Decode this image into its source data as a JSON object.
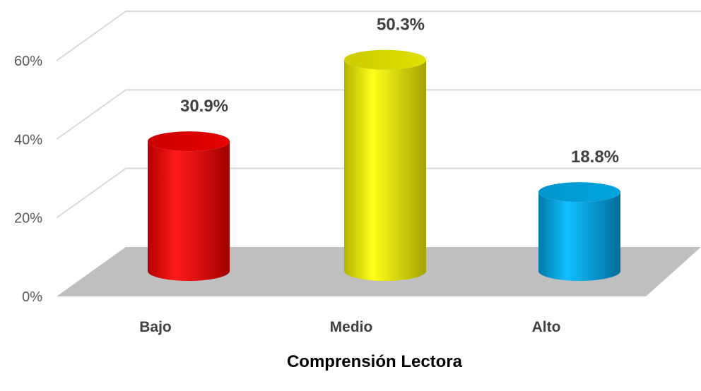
{
  "chart_data": {
    "type": "bar",
    "style": "3d-cylinder",
    "categories": [
      "Bajo",
      "Medio",
      "Alto"
    ],
    "values": [
      30.9,
      50.3,
      18.8
    ],
    "data_labels": [
      "30.9%",
      "50.3%",
      "18.8%"
    ],
    "colors": [
      "#ff0000",
      "#ffff00",
      "#00b0f0"
    ],
    "y_ticks": [
      "0%",
      "20%",
      "40%",
      "60%"
    ],
    "ylim": [
      0,
      60
    ],
    "xlabel": "Comprensión Lectora",
    "ylabel": "",
    "grid": true,
    "floor_color": "#bfbfbf"
  }
}
